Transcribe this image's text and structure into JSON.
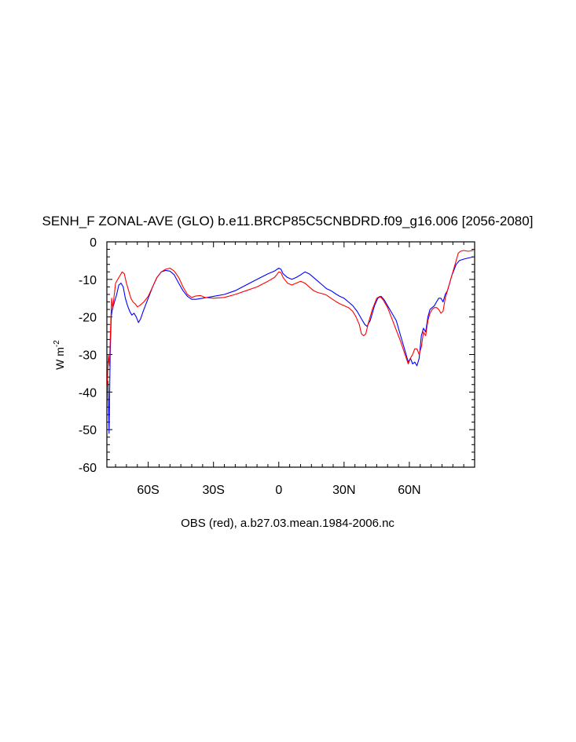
{
  "chart_data": {
    "type": "line",
    "title": "SENH_F ZONAL-AVE (GLO) b.e11.BRCP85C5CNBDRD.f09_g16.006 [2056-2080]",
    "ylabel": "W m",
    "ylabel_exponent": "-2",
    "caption": "OBS (red), a.b27.03.mean.1984-2006.nc",
    "xlim": [
      -79,
      90
    ],
    "ylim": [
      -60,
      0
    ],
    "x_ticks": [
      {
        "value": -60,
        "label": "60S"
      },
      {
        "value": -30,
        "label": "30S"
      },
      {
        "value": 0,
        "label": "0"
      },
      {
        "value": 30,
        "label": "30N"
      },
      {
        "value": 60,
        "label": "60N"
      }
    ],
    "y_ticks": [
      {
        "value": 0,
        "label": "0"
      },
      {
        "value": -10,
        "label": "-10"
      },
      {
        "value": -20,
        "label": "-20"
      },
      {
        "value": -30,
        "label": "-30"
      },
      {
        "value": -40,
        "label": "-40"
      },
      {
        "value": -50,
        "label": "-50"
      },
      {
        "value": -60,
        "label": "-60"
      }
    ],
    "grid": false,
    "series": [
      {
        "color": "#0000ff",
        "points": [
          [
            -78.5,
            -37
          ],
          [
            -78,
            -51
          ],
          [
            -77.5,
            -30
          ],
          [
            -77,
            -20
          ],
          [
            -76.5,
            -18
          ],
          [
            -75.5,
            -16
          ],
          [
            -74.5,
            -14
          ],
          [
            -73.5,
            -11.5
          ],
          [
            -72.5,
            -11
          ],
          [
            -71.5,
            -12
          ],
          [
            -70.5,
            -15
          ],
          [
            -69.5,
            -17
          ],
          [
            -68.5,
            -18.5
          ],
          [
            -67.5,
            -19.5
          ],
          [
            -66.5,
            -19
          ],
          [
            -65.5,
            -20
          ],
          [
            -64.5,
            -21.5
          ],
          [
            -63.5,
            -20.5
          ],
          [
            -62,
            -18
          ],
          [
            -60,
            -15
          ],
          [
            -58,
            -12
          ],
          [
            -56,
            -9.5
          ],
          [
            -54,
            -8
          ],
          [
            -52,
            -7.6
          ],
          [
            -50,
            -7.8
          ],
          [
            -48,
            -8.8
          ],
          [
            -46,
            -11
          ],
          [
            -44,
            -13
          ],
          [
            -42,
            -14.5
          ],
          [
            -40,
            -15.3
          ],
          [
            -38,
            -15.3
          ],
          [
            -35,
            -15
          ],
          [
            -30,
            -14.5
          ],
          [
            -25,
            -14
          ],
          [
            -20,
            -13
          ],
          [
            -15,
            -11.5
          ],
          [
            -10,
            -10
          ],
          [
            -5,
            -8.5
          ],
          [
            -2,
            -7.8
          ],
          [
            0,
            -7
          ],
          [
            1,
            -7.3
          ],
          [
            2,
            -8.5
          ],
          [
            4,
            -9.5
          ],
          [
            6,
            -10
          ],
          [
            8,
            -9.5
          ],
          [
            10,
            -8.8
          ],
          [
            12,
            -8
          ],
          [
            14,
            -8.5
          ],
          [
            16,
            -9.5
          ],
          [
            18,
            -10.5
          ],
          [
            20,
            -11.5
          ],
          [
            22,
            -12.5
          ],
          [
            24,
            -13
          ],
          [
            26,
            -13.8
          ],
          [
            28,
            -14.5
          ],
          [
            30,
            -15
          ],
          [
            32,
            -16
          ],
          [
            34,
            -17
          ],
          [
            36,
            -18.5
          ],
          [
            38,
            -20.5
          ],
          [
            39.5,
            -22
          ],
          [
            40.5,
            -22.5
          ],
          [
            42,
            -21
          ],
          [
            44,
            -17
          ],
          [
            45.5,
            -15
          ],
          [
            47,
            -14.5
          ],
          [
            48.5,
            -15.5
          ],
          [
            50,
            -17
          ],
          [
            52,
            -19
          ],
          [
            54,
            -21
          ],
          [
            56,
            -25
          ],
          [
            58,
            -29
          ],
          [
            59.5,
            -32
          ],
          [
            60.5,
            -31
          ],
          [
            61.5,
            -32.5
          ],
          [
            62.5,
            -32
          ],
          [
            63.5,
            -33
          ],
          [
            64.5,
            -31
          ],
          [
            65.5,
            -25
          ],
          [
            66.5,
            -23
          ],
          [
            67.5,
            -24
          ],
          [
            68.5,
            -20
          ],
          [
            69.5,
            -18
          ],
          [
            70.5,
            -17.5
          ],
          [
            71.5,
            -17
          ],
          [
            72.5,
            -16
          ],
          [
            73.5,
            -15
          ],
          [
            74.5,
            -15
          ],
          [
            75.5,
            -16
          ],
          [
            76.5,
            -14
          ],
          [
            77.5,
            -13
          ],
          [
            78.5,
            -11
          ],
          [
            79.5,
            -9
          ],
          [
            80.5,
            -7.5
          ],
          [
            81.5,
            -6
          ],
          [
            83,
            -5
          ],
          [
            85,
            -4.6
          ],
          [
            87,
            -4.3
          ],
          [
            89.5,
            -4
          ]
        ]
      },
      {
        "color": "#ff0000",
        "points": [
          [
            -78.8,
            -38
          ],
          [
            -78.3,
            -30
          ],
          [
            -77.8,
            -33
          ],
          [
            -77.3,
            -23
          ],
          [
            -76.8,
            -15
          ],
          [
            -76.3,
            -18
          ],
          [
            -75.8,
            -15
          ],
          [
            -75,
            -11
          ],
          [
            -74,
            -10
          ],
          [
            -73,
            -9
          ],
          [
            -72,
            -8
          ],
          [
            -71,
            -8.5
          ],
          [
            -70,
            -11
          ],
          [
            -69,
            -13
          ],
          [
            -68,
            -15
          ],
          [
            -67,
            -16
          ],
          [
            -66,
            -16.5
          ],
          [
            -65,
            -17.3
          ],
          [
            -64,
            -17
          ],
          [
            -62,
            -16
          ],
          [
            -60,
            -14.5
          ],
          [
            -58,
            -12
          ],
          [
            -56,
            -9.5
          ],
          [
            -54,
            -8
          ],
          [
            -52,
            -7.3
          ],
          [
            -50,
            -7
          ],
          [
            -48,
            -7.8
          ],
          [
            -46,
            -9.5
          ],
          [
            -44,
            -12
          ],
          [
            -42,
            -14
          ],
          [
            -40,
            -14.8
          ],
          [
            -38,
            -14.4
          ],
          [
            -36,
            -14.3
          ],
          [
            -34,
            -14.8
          ],
          [
            -30,
            -15
          ],
          [
            -25,
            -14.8
          ],
          [
            -20,
            -14
          ],
          [
            -15,
            -13
          ],
          [
            -10,
            -12
          ],
          [
            -5,
            -10.5
          ],
          [
            -2,
            -9.5
          ],
          [
            -1,
            -8.8
          ],
          [
            0,
            -8
          ],
          [
            1,
            -8.2
          ],
          [
            2,
            -9.5
          ],
          [
            4,
            -11
          ],
          [
            6,
            -11.5
          ],
          [
            8,
            -11
          ],
          [
            10,
            -10.5
          ],
          [
            12,
            -11
          ],
          [
            14,
            -12
          ],
          [
            16,
            -13
          ],
          [
            18,
            -13.5
          ],
          [
            20,
            -13.8
          ],
          [
            22,
            -14.2
          ],
          [
            24,
            -15
          ],
          [
            26,
            -15.8
          ],
          [
            28,
            -16.5
          ],
          [
            30,
            -17
          ],
          [
            32,
            -17.5
          ],
          [
            34,
            -18.5
          ],
          [
            35.5,
            -20
          ],
          [
            37,
            -22
          ],
          [
            38,
            -24.5
          ],
          [
            39,
            -25
          ],
          [
            40,
            -24.5
          ],
          [
            41,
            -22
          ],
          [
            43,
            -18
          ],
          [
            45,
            -15
          ],
          [
            46.5,
            -14.5
          ],
          [
            48,
            -15.5
          ],
          [
            50,
            -17.5
          ],
          [
            52,
            -20.5
          ],
          [
            54,
            -23.5
          ],
          [
            56,
            -26.5
          ],
          [
            58,
            -30
          ],
          [
            59.5,
            -32.5
          ],
          [
            60.5,
            -31
          ],
          [
            61.5,
            -30
          ],
          [
            62.5,
            -28.5
          ],
          [
            63.5,
            -28.5
          ],
          [
            64.5,
            -30
          ],
          [
            65.5,
            -28
          ],
          [
            66.5,
            -24
          ],
          [
            67.5,
            -25
          ],
          [
            68.5,
            -21
          ],
          [
            69.5,
            -19
          ],
          [
            70.5,
            -18
          ],
          [
            71.5,
            -17.5
          ],
          [
            72.5,
            -17.5
          ],
          [
            73.5,
            -18
          ],
          [
            74.5,
            -19
          ],
          [
            75.5,
            -18.5
          ],
          [
            76.5,
            -15
          ],
          [
            77.5,
            -13
          ],
          [
            78.5,
            -11
          ],
          [
            79.5,
            -9
          ],
          [
            80.5,
            -7
          ],
          [
            81.5,
            -5
          ],
          [
            82.5,
            -3
          ],
          [
            83.5,
            -2.5
          ],
          [
            85,
            -2.3
          ],
          [
            87,
            -2.5
          ],
          [
            89.5,
            -2.3
          ]
        ]
      }
    ]
  }
}
